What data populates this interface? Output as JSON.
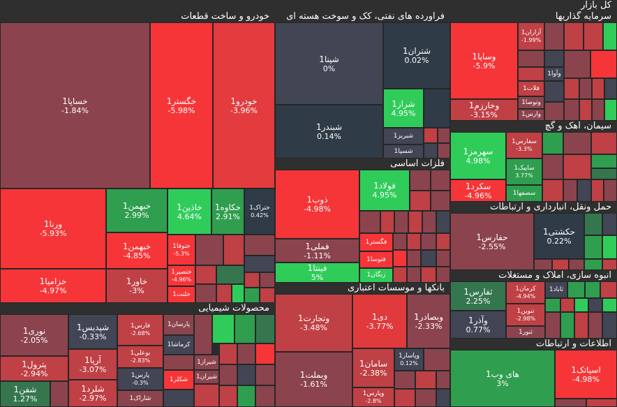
{
  "title": "کل بازار",
  "colors": {
    "neg_strong": "#f63538",
    "neg_mid": "#bf4045",
    "neg_weak": "#8b444e",
    "neutral": "#414554",
    "neutral_dark": "#2f3b47",
    "pos_weak": "#35764e",
    "pos_mid": "#2f9e4f",
    "pos_strong": "#30cc5a"
  },
  "sectors": {
    "auto": "خودرو و ساخت قطعات",
    "refinery": "فراورده های نفتی، کک و سوخت هسته ای",
    "investment": "سرمایه گذاریها",
    "cement": "سیمان، آهک و گچ",
    "metals": "فلزات اساسی",
    "transport": "حمل ونقل، انبارداری و ارتباطات",
    "chemical": "محصولات شیمیایی",
    "banks": "بانکها و موسسات اعتباری",
    "construction": "انبوه سازی، املاک و مستغلات",
    "ict": "اطلاعات و ارتباطات"
  },
  "tiles": {
    "khsapa": {
      "name": "خساپا1",
      "change": "-1.84%"
    },
    "khgostar": {
      "name": "خگستر1",
      "change": "-5.98%"
    },
    "khodro": {
      "name": "خودرو1",
      "change": "-3.96%"
    },
    "vrena": {
      "name": "ورنا1",
      "change": "-5.93%"
    },
    "khbahman": {
      "name": "خبهمن1",
      "change": "2.99%"
    },
    "khazin": {
      "name": "خاذین1",
      "change": "4.64%"
    },
    "khkava": {
      "name": "خکاوه1",
      "change": "2.91%"
    },
    "khtrak": {
      "name": "ختراک1",
      "change": "0.42%"
    },
    "khbahmn": {
      "name": "خبهمن1",
      "change": "-4.85%"
    },
    "khtoga": {
      "name": "ختوقا1",
      "change": "-5.3%"
    },
    "khzamia": {
      "name": "خزامیا1",
      "change": "-4.97%"
    },
    "khavar": {
      "name": "خاور1",
      "change": "-3%"
    },
    "khtsepir": {
      "name": "ختصیر1",
      "change": "-4.96%"
    },
    "khlant": {
      "name": "خلنت1",
      "change": ""
    },
    "shpna": {
      "name": "شپنا1",
      "change": "0%"
    },
    "shtran": {
      "name": "شتران1",
      "change": "0.02%"
    },
    "shbandar": {
      "name": "شبندر1",
      "change": "0.14%"
    },
    "shraz": {
      "name": "شراز1",
      "change": "4.95%"
    },
    "shbriz": {
      "name": "شبریز1",
      "change": ""
    },
    "shsapa": {
      "name": "شسپا1",
      "change": ""
    },
    "vsapa": {
      "name": "وساپا1",
      "change": "-5.9%"
    },
    "vkharazm": {
      "name": "وخارزم1",
      "change": "-3.15%"
    },
    "azaran": {
      "name": "آزاران1",
      "change": "-1.99%"
    },
    "vava": {
      "name": "وآوا1",
      "change": ""
    },
    "falat": {
      "name": "فلات1",
      "change": ""
    },
    "vtosa": {
      "name": "وتوصا1",
      "change": ""
    },
    "varas": {
      "name": "وارس1",
      "change": ""
    },
    "sfars": {
      "name": "سفارس1",
      "change": "-3.3%"
    },
    "sehormoz": {
      "name": "سهرمز1",
      "change": "4.98%"
    },
    "sapik": {
      "name": "ساپیک1",
      "change": "3.77%"
    },
    "sekord": {
      "name": "سکرد1",
      "change": "-4.96%"
    },
    "sesfaha": {
      "name": "سصفها1",
      "change": ""
    },
    "zob": {
      "name": "ذوب1",
      "change": "-4.98%"
    },
    "foolad": {
      "name": "فولاد1",
      "change": "4.95%"
    },
    "fmli": {
      "name": "فملی1",
      "change": "-1.11%"
    },
    "fgostar": {
      "name": "فگستر1",
      "change": ""
    },
    "fetosa": {
      "name": "فتوسا1",
      "change": ""
    },
    "fina": {
      "name": "فینتا1",
      "change": "5%"
    },
    "zangan": {
      "name": "زنگان1",
      "change": ""
    },
    "hafars": {
      "name": "حفارس1",
      "change": "-2.55%"
    },
    "hkeshti": {
      "name": "حکشتی1",
      "change": "0.22%"
    },
    "nori": {
      "name": "نوری1",
      "change": "-2.05%"
    },
    "shedis": {
      "name": "شپدیس1",
      "change": "-0.33%"
    },
    "fars": {
      "name": "فارس1",
      "change": "-2.68%"
    },
    "parsan": {
      "name": "پارسان1",
      "change": ""
    },
    "kermasha": {
      "name": "کرماشا1",
      "change": ""
    },
    "petrol": {
      "name": "پترول1",
      "change": "-2.94%"
    },
    "arya": {
      "name": "آریا1",
      "change": "-3.07%"
    },
    "booali": {
      "name": "بوعلی1",
      "change": "-2.83%"
    },
    "shiraz": {
      "name": "شیراز1",
      "change": ""
    },
    "shafan": {
      "name": "شفن1",
      "change": "1.27%"
    },
    "shelard": {
      "name": "شلرد1",
      "change": "-2.97%"
    },
    "pars": {
      "name": "پارس1",
      "change": "-0.3%"
    },
    "shekalar": {
      "name": "شکلر1",
      "change": ""
    },
    "shiran": {
      "name": "شیران1",
      "change": ""
    },
    "sharak": {
      "name": "شاراک1",
      "change": ""
    },
    "vtejarat": {
      "name": "وتجارت1",
      "change": "-3.48%"
    },
    "di": {
      "name": "دی1",
      "change": "-3.77%"
    },
    "vbsader": {
      "name": "وبصادر1",
      "change": "-2.33%"
    },
    "vbmellat": {
      "name": "وبملت1",
      "change": "-1.61%"
    },
    "saman": {
      "name": "سامان1",
      "change": "-2.38%"
    },
    "vpasar": {
      "name": "وپاسار1",
      "change": "0.12%"
    },
    "vpars": {
      "name": "وپارس1",
      "change": "-2.8%"
    },
    "thfars": {
      "name": "ثفارس1",
      "change": "2.25%"
    },
    "kerman": {
      "name": "کرمان1",
      "change": "-4.94%"
    },
    "sabad": {
      "name": "ثاباد1",
      "change": ""
    },
    "vazar": {
      "name": "وآذر1",
      "change": "0.77%"
    },
    "tnovin": {
      "name": "تنوین1",
      "change": "-2.98%"
    },
    "thnoor": {
      "name": "ثنور1",
      "change": ""
    },
    "hiweb": {
      "name": "های وب1",
      "change": "3%"
    },
    "asiatek": {
      "name": "اسیاتک1",
      "change": "-4.98%"
    }
  }
}
